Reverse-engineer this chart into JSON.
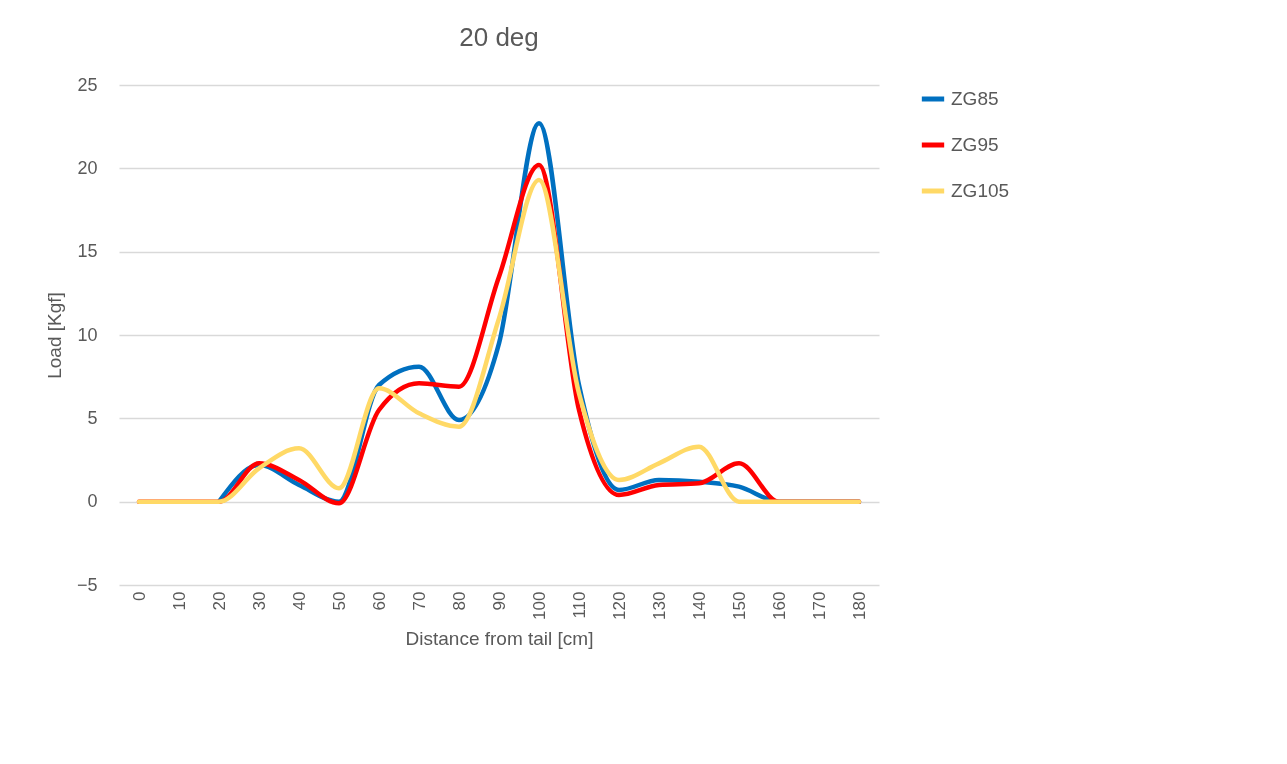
{
  "chart_data": {
    "type": "line",
    "title": "20 deg",
    "xlabel": "Distance from tail [cm]",
    "ylabel": "Load [Kgf]",
    "categories": [
      "0",
      "10",
      "20",
      "30",
      "40",
      "50",
      "60",
      "70",
      "80",
      "90",
      "100",
      "110",
      "120",
      "130",
      "140",
      "150",
      "160",
      "170",
      "180"
    ],
    "series": [
      {
        "name": "ZG85",
        "color": "#0070c0",
        "values": [
          null,
          null,
          0,
          2.2,
          1,
          0,
          7,
          8.1,
          4.9,
          9.5,
          22.7,
          7,
          0.7,
          1.3,
          1.2,
          0.9,
          0,
          0,
          0
        ]
      },
      {
        "name": "ZG95",
        "color": "#ff0000",
        "values": [
          0,
          0,
          0,
          2.3,
          1.3,
          -0.1,
          5.5,
          7.1,
          6.9,
          13.5,
          20.2,
          5.5,
          0.4,
          1,
          1.1,
          2.3,
          0,
          0,
          0
        ]
      },
      {
        "name": "ZG105",
        "color": "#ffd966",
        "values": [
          0,
          0,
          0,
          2,
          3.2,
          0.8,
          6.8,
          5.3,
          4.5,
          11,
          19.3,
          6.5,
          1.3,
          2.3,
          3.3,
          0,
          0,
          0,
          0
        ]
      }
    ],
    "ylim": [
      -5,
      25
    ],
    "yticks": [
      -5,
      0,
      5,
      10,
      15,
      20,
      25
    ],
    "grid": "y",
    "legend": "right",
    "line_style": "solid",
    "marker": "none"
  }
}
